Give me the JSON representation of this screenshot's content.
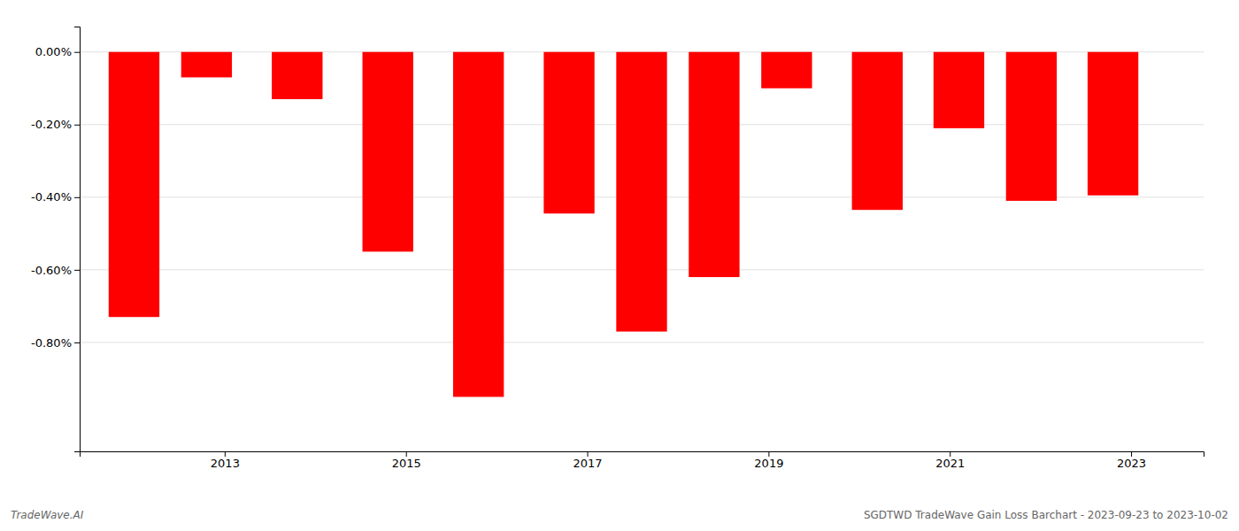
{
  "chart_data": {
    "type": "bar",
    "x": [
      2012,
      2012.8,
      2013.8,
      2014.8,
      2015.8,
      2016.8,
      2017.6,
      2018.4,
      2019.2,
      2020.2,
      2021.1,
      2021.9,
      2022.8
    ],
    "values": [
      -0.73,
      -0.07,
      -0.13,
      -0.55,
      -0.95,
      -0.445,
      -0.77,
      -0.62,
      -0.1,
      -0.435,
      -0.21,
      -0.41,
      -0.395
    ],
    "color": "#ff0000",
    "xlim": [
      2011.4,
      2023.8
    ],
    "xticks": [
      2013,
      2015,
      2017,
      2019,
      2021,
      2023
    ],
    "ylim": [
      -1.1,
      0.07
    ],
    "yticks": [
      {
        "value": 0.0,
        "label": "0.00%"
      },
      {
        "value": -0.2,
        "label": "-0.20%"
      },
      {
        "value": -0.4,
        "label": "-0.40%"
      },
      {
        "value": -0.6,
        "label": "-0.60%"
      },
      {
        "value": -0.8,
        "label": "-0.80%"
      }
    ],
    "grid": true,
    "annotations": [
      "TradeWave.AI",
      "SGDTWD TradeWave Gain Loss Barchart - 2023-09-23 to 2023-10-02"
    ]
  }
}
